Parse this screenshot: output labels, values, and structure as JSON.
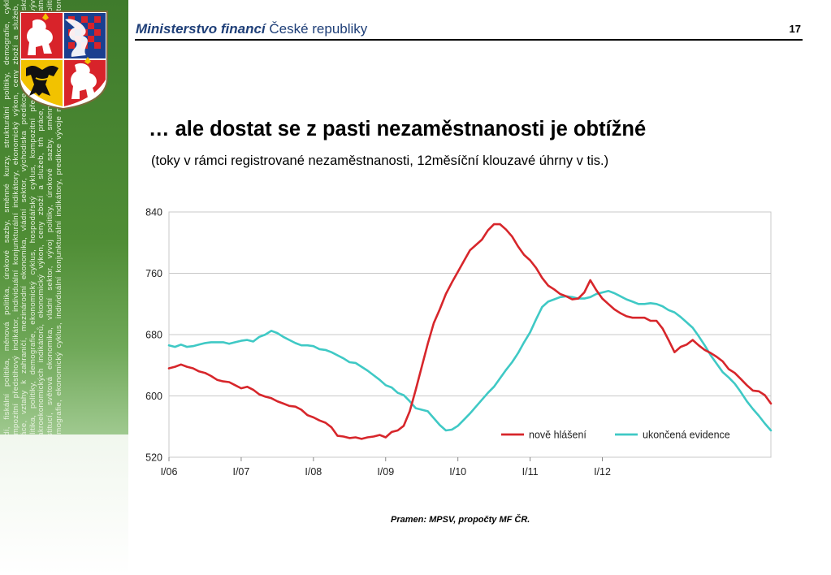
{
  "header": {
    "org_bold": "Ministerstvo financí",
    "org_rest": " České republiky",
    "page_number": "17"
  },
  "slide": {
    "title": "… ale dostat se z pasti nezaměstnanosti je obtížné",
    "subtitle": "(toky v rámci registrované nezaměstnanosti, 12měsíční klouzavé úhrny v tis.)",
    "source": "Pramen: MPSV, propočty MF ČR."
  },
  "sidebar": {
    "text": "ředí, fiskální politika, měnová politika, úrokové sazby, směnné kurzy, strukturální politiky, demografie, cyklus, kompozitní předstihový indikátor, individuální konjunkturální indikátory, ekonomický výkon, ceny zboží a služeb, trh práce, vztahy k zahraničí, mezinárodní ekonomika, vládní sektor, východiska predikce, vnější prostředí, fiskální politika, politiky, demografie, ekonomický cyklus, hospodářský cyklus, kompozitní předstihový indikátor, e vývoje makroekonomických indikátorů, ekonomický výkon, ceny zboží a služeb, trh práce, monitoring predikcí ostatních institucí, světová ekonomika, vládní sektor, vývoj politiky, úrokové sazby, směnné kurzy, strukturální politiky, demografie, ekonomický cyklus, individuální konjunkturální indikátory, predikce vývoje makroekonomických indikátorů",
    "colors": {
      "green": "#4a8a33",
      "red": "#d8232a",
      "white": "#ffffff",
      "gold": "#f2c200",
      "blue": "#1b3f8f"
    }
  },
  "chart_data": {
    "type": "line",
    "x_labels": [
      "I/06",
      "I/07",
      "I/08",
      "I/09",
      "I/10",
      "I/11",
      "I/12"
    ],
    "x_start": "2006-01",
    "ylim": [
      520,
      840
    ],
    "yticks": [
      520,
      600,
      680,
      760,
      840
    ],
    "grid": "horizontal",
    "legend_position": "bottom-right",
    "series": [
      {
        "name": "nově hlášení",
        "color": "#d7262b",
        "values": [
          636,
          638,
          641,
          638,
          636,
          632,
          630,
          626,
          621,
          619,
          618,
          614,
          610,
          612,
          608,
          602,
          599,
          597,
          593,
          590,
          587,
          586,
          582,
          575,
          572,
          568,
          565,
          559,
          548,
          547,
          545,
          546,
          544,
          546,
          547,
          549,
          546,
          553,
          555,
          561,
          580,
          608,
          638,
          668,
          695,
          713,
          733,
          748,
          762,
          776,
          790,
          797,
          804,
          816,
          824,
          824,
          817,
          808,
          795,
          784,
          777,
          767,
          754,
          744,
          739,
          733,
          730,
          726,
          727,
          735,
          751,
          738,
          727,
          720,
          713,
          708,
          704,
          702,
          702,
          702,
          698,
          698,
          688,
          673,
          657,
          664,
          667,
          673,
          666,
          660,
          656,
          651,
          645,
          635,
          630,
          622,
          614,
          607,
          606,
          601,
          590
        ]
      },
      {
        "name": "ukončená evidence",
        "color": "#3fc9c5",
        "values": [
          666,
          664,
          667,
          664,
          665,
          667,
          669,
          670,
          670,
          670,
          668,
          670,
          672,
          673,
          671,
          677,
          680,
          685,
          682,
          677,
          673,
          669,
          666,
          666,
          665,
          661,
          660,
          657,
          653,
          649,
          644,
          643,
          638,
          633,
          627,
          621,
          614,
          611,
          604,
          601,
          593,
          584,
          582,
          580,
          571,
          562,
          555,
          556,
          561,
          569,
          577,
          586,
          595,
          604,
          612,
          623,
          634,
          644,
          656,
          670,
          683,
          700,
          716,
          723,
          726,
          729,
          730,
          729,
          727,
          727,
          729,
          733,
          735,
          737,
          734,
          730,
          726,
          723,
          720,
          720,
          721,
          720,
          717,
          712,
          709,
          703,
          696,
          689,
          678,
          666,
          653,
          642,
          631,
          624,
          616,
          605,
          593,
          583,
          574,
          564,
          555
        ]
      }
    ]
  }
}
